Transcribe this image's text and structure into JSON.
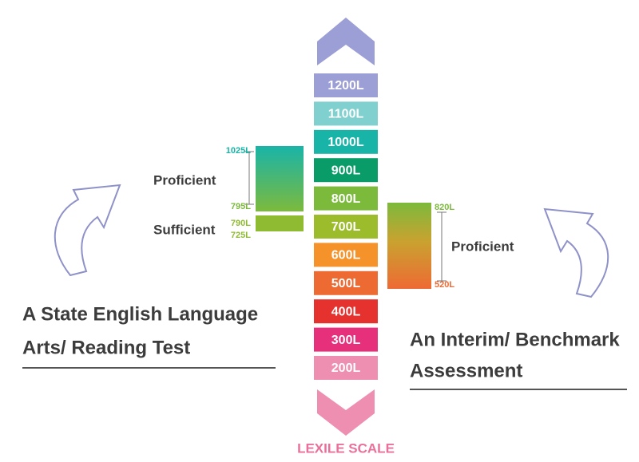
{
  "scale": {
    "levels": [
      {
        "label": "1200L",
        "color": "#9c9fd6"
      },
      {
        "label": "1100L",
        "color": "#7fd0cf"
      },
      {
        "label": "1000L",
        "color": "#19b4a8"
      },
      {
        "label": "900L",
        "color": "#0a9c68"
      },
      {
        "label": "800L",
        "color": "#7cba3c"
      },
      {
        "label": "700L",
        "color": "#9cbc2b"
      },
      {
        "label": "600L",
        "color": "#f5922a"
      },
      {
        "label": "500L",
        "color": "#ee6a33"
      },
      {
        "label": "400L",
        "color": "#e6322e"
      },
      {
        "label": "300L",
        "color": "#e7307b"
      },
      {
        "label": "200L",
        "color": "#ee8fb1"
      }
    ],
    "label": "LEXILE SCALE"
  },
  "left": {
    "title_lines": [
      "A State English Language",
      "Arts/ Reading Test"
    ],
    "proficient": {
      "label": "Proficient",
      "top": "1025L",
      "bottom": "795L"
    },
    "sufficient": {
      "label": "Sufficient",
      "top": "790L",
      "bottom": "725L"
    }
  },
  "right": {
    "title_lines": [
      "An Interim/ Benchmark",
      "Assessment"
    ],
    "proficient": {
      "label": "Proficient",
      "top": "820L",
      "bottom": "520L"
    }
  }
}
